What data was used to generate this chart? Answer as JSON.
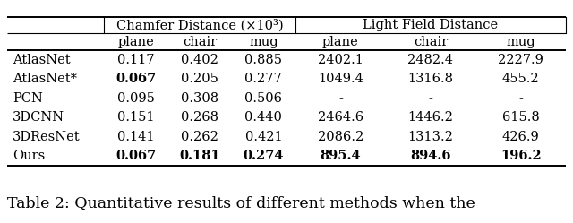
{
  "methods": [
    "AtlasNet",
    "AtlasNet*",
    "PCN",
    "3DCNN",
    "3DResNet",
    "Ours"
  ],
  "chamfer": {
    "plane": [
      "0.117",
      "0.067",
      "0.095",
      "0.151",
      "0.141",
      "0.067"
    ],
    "chair": [
      "0.402",
      "0.205",
      "0.308",
      "0.268",
      "0.262",
      "0.181"
    ],
    "mug": [
      "0.885",
      "0.277",
      "0.506",
      "0.440",
      "0.421",
      "0.274"
    ]
  },
  "lightfield": {
    "plane": [
      "2402.1",
      "1049.4",
      "-",
      "2464.6",
      "2086.2",
      "895.4"
    ],
    "chair": [
      "2482.4",
      "1316.8",
      "-",
      "1446.2",
      "1313.2",
      "894.6"
    ],
    "mug": [
      "2227.9",
      "455.2",
      "-",
      "615.8",
      "426.9",
      "196.2"
    ]
  },
  "bold_cells": {
    "AtlasNet*_chamfer_plane": true,
    "Ours_chamfer_plane": true,
    "Ours_chamfer_chair": true,
    "Ours_chamfer_mug": true,
    "Ours_lightfield_plane": true,
    "Ours_lightfield_chair": true,
    "Ours_lightfield_mug": true
  },
  "caption": "Table 2: Quantitative results of different methods when the",
  "header_group1": "Chamfer Distance (×10³)",
  "header_group2": "Light Field Distance",
  "col_headers": [
    "plane",
    "chair",
    "mug",
    "plane",
    "chair",
    "mug"
  ],
  "bg_color": "#ffffff",
  "text_color": "#000000",
  "font_family": "serif",
  "fs_header": 10.5,
  "fs_data": 10.5,
  "fs_caption": 12.5
}
